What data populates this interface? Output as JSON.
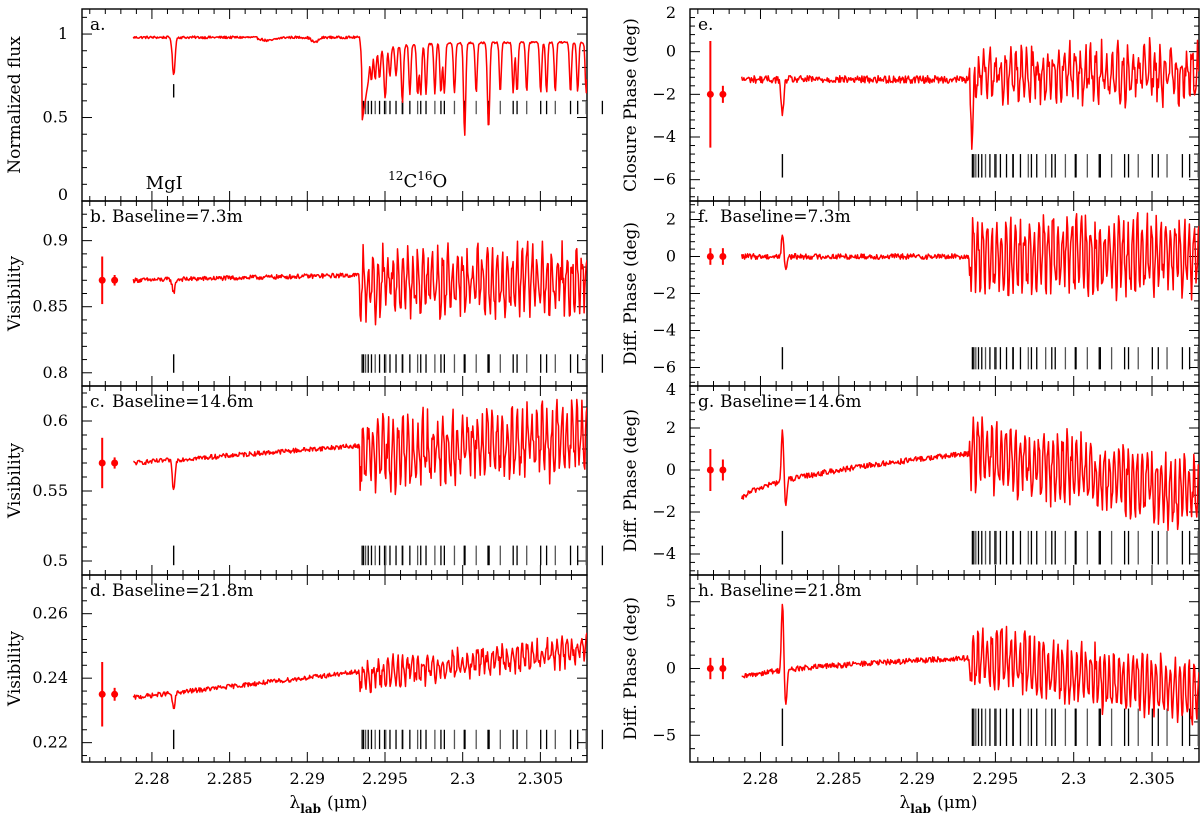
{
  "figure": {
    "x_axis_label": "λ",
    "x_axis_label_sub": "lab",
    "x_axis_label_unit": "(μm)",
    "x_ticks": [
      2.28,
      2.285,
      2.29,
      2.295,
      2.3,
      2.305
    ],
    "x_tick_labels": [
      "2.28",
      "2.285",
      "2.29",
      "2.295",
      "2.3",
      "2.305"
    ]
  },
  "chart_data": [
    {
      "id": "a",
      "type": "line",
      "panel_label": "a.",
      "ylabel": "Normalized flux",
      "xlim": [
        2.2755,
        2.308
      ],
      "ylim": [
        0,
        1.15
      ],
      "yticks": [
        0,
        0.5,
        1
      ],
      "ytick_labels": [
        "0",
        "0.5",
        "1"
      ],
      "series_color": "#ff0000",
      "error_points": [],
      "line_marker_levels": [
        0.7,
        0.62
      ],
      "co_marker_levels": [
        0.6,
        0.52
      ],
      "annotations": {
        "mg": "MgI",
        "co_sup1": "12",
        "co_c": "C",
        "co_sup2": "16",
        "co_o": "O"
      },
      "summary": {
        "x_start": 2.2788,
        "continuum": 0.98,
        "mg_line_depth": 0.75,
        "co_bandhead_min": 0.48,
        "co_continuum": 0.95,
        "co_line_depth_min": 0.55
      }
    },
    {
      "id": "b",
      "type": "line",
      "panel_label": "b.",
      "title": "Baseline=7.3m",
      "ylabel": "Visibility",
      "xlim": [
        2.2755,
        2.308
      ],
      "ylim": [
        0.79,
        0.93
      ],
      "yticks": [
        0.8,
        0.85,
        0.9
      ],
      "ytick_labels": [
        "0.8",
        "0.85",
        "0.9"
      ],
      "series_color": "#ff0000",
      "error_points": [
        {
          "x": 2.2768,
          "y": 0.87,
          "err": 0.018
        },
        {
          "x": 2.2776,
          "y": 0.87,
          "err": 0.004
        }
      ],
      "line_marker_levels": [
        0.814,
        0.8
      ],
      "co_marker_levels": [
        0.814,
        0.8
      ],
      "summary": {
        "x_start": 2.2788,
        "level_start": 0.87,
        "level_end": 0.878,
        "mg_feature": 0.86,
        "co_amplitude": 0.035
      }
    },
    {
      "id": "c",
      "type": "line",
      "panel_label": "c.",
      "title": "Baseline=14.6m",
      "ylabel": "Visibility",
      "xlim": [
        2.2755,
        2.308
      ],
      "ylim": [
        0.49,
        0.625
      ],
      "yticks": [
        0.5,
        0.55,
        0.6
      ],
      "ytick_labels": [
        "0.5",
        "0.55",
        "0.6"
      ],
      "series_color": "#ff0000",
      "error_points": [
        {
          "x": 2.2768,
          "y": 0.57,
          "err": 0.018
        },
        {
          "x": 2.2776,
          "y": 0.57,
          "err": 0.004
        }
      ],
      "line_marker_levels": [
        0.511,
        0.497
      ],
      "co_marker_levels": [
        0.511,
        0.497
      ],
      "summary": {
        "x_start": 2.2788,
        "level_start": 0.57,
        "level_end": 0.595,
        "mg_feature": 0.548,
        "co_amplitude": 0.035
      }
    },
    {
      "id": "d",
      "type": "line",
      "panel_label": "d.",
      "title": "Baseline=21.8m",
      "ylabel": "Visibility",
      "xlim": [
        2.2755,
        2.308
      ],
      "ylim": [
        0.214,
        0.272
      ],
      "yticks": [
        0.22,
        0.24,
        0.26
      ],
      "ytick_labels": [
        "0.22",
        "0.24",
        "0.26"
      ],
      "series_color": "#ff0000",
      "error_points": [
        {
          "x": 2.2768,
          "y": 0.235,
          "err": 0.01
        },
        {
          "x": 2.2776,
          "y": 0.235,
          "err": 0.002
        }
      ],
      "line_marker_levels": [
        0.224,
        0.218
      ],
      "co_marker_levels": [
        0.224,
        0.218
      ],
      "summary": {
        "x_start": 2.2788,
        "level_start": 0.234,
        "level_end": 0.25,
        "mg_feature": 0.229,
        "co_amplitude": 0.006
      }
    },
    {
      "id": "e",
      "type": "line",
      "panel_label": "e.",
      "ylabel": "Closure Phase (deg)",
      "xlim": [
        2.2755,
        2.308
      ],
      "ylim": [
        -7,
        2
      ],
      "yticks": [
        2,
        0,
        -2,
        -4,
        -6
      ],
      "ytick_labels": [
        "2",
        "0",
        "−2",
        "−4",
        "−6"
      ],
      "series_color": "#ff0000",
      "error_points": [
        {
          "x": 2.2768,
          "y": -2.0,
          "err": 2.5
        },
        {
          "x": 2.2776,
          "y": -2.0,
          "err": 0.4
        }
      ],
      "line_marker_levels": [
        -4.8,
        -5.9
      ],
      "co_marker_levels": [
        -4.8,
        -5.9
      ],
      "summary": {
        "x_start": 2.2788,
        "level": -1.3,
        "mg_feature": -3.0,
        "co_bandhead_min": -4.3,
        "co_amplitude": 1.6
      }
    },
    {
      "id": "f",
      "type": "line",
      "panel_label": "f.",
      "title": "Baseline=7.3m",
      "ylabel": "Diff. Phase (deg)",
      "xlim": [
        2.2755,
        2.308
      ],
      "ylim": [
        -7,
        3
      ],
      "yticks": [
        2,
        0,
        -2,
        -4,
        -6
      ],
      "ytick_labels": [
        "2",
        "0",
        "−2",
        "−4",
        "−6"
      ],
      "series_color": "#ff0000",
      "error_points": [
        {
          "x": 2.2768,
          "y": 0.0,
          "err": 0.45
        },
        {
          "x": 2.2776,
          "y": 0.0,
          "err": 0.45
        }
      ],
      "line_marker_levels": [
        -4.9,
        -6.1
      ],
      "co_marker_levels": [
        -4.9,
        -6.1
      ],
      "summary": {
        "x_start": 2.2788,
        "level": 0.0,
        "mg_feature": 1.2,
        "co_amplitude": 2.2
      }
    },
    {
      "id": "g",
      "type": "line",
      "panel_label": "g.",
      "title": "Baseline=14.6m",
      "ylabel": "Diff. Phase (deg)",
      "xlim": [
        2.2755,
        2.308
      ],
      "ylim": [
        -5,
        4
      ],
      "yticks": [
        4,
        2,
        0,
        -2,
        -4
      ],
      "ytick_labels": [
        "4",
        "2",
        "0",
        "−2",
        "−4"
      ],
      "series_color": "#ff0000",
      "error_points": [
        {
          "x": 2.2768,
          "y": 0.0,
          "err": 1.0
        },
        {
          "x": 2.2776,
          "y": 0.0,
          "err": 0.5
        }
      ],
      "line_marker_levels": [
        -2.9,
        -4.5
      ],
      "co_marker_levels": [
        -2.9,
        -4.5
      ],
      "summary": {
        "x_start": 2.2788,
        "level_start": -1.5,
        "level_mid": 0.8,
        "level_end": -1.2,
        "mg_feature": 2.0,
        "co_amplitude": 1.8
      }
    },
    {
      "id": "h",
      "type": "line",
      "panel_label": "h.",
      "title": "Baseline=21.8m",
      "ylabel": "Diff. Phase (deg)",
      "xlim": [
        2.2755,
        2.308
      ],
      "ylim": [
        -7,
        7
      ],
      "yticks": [
        5,
        0,
        -5
      ],
      "ytick_labels": [
        "5",
        "0",
        "−5"
      ],
      "series_color": "#ff0000",
      "error_points": [
        {
          "x": 2.2768,
          "y": 0.0,
          "err": 0.8
        },
        {
          "x": 2.2776,
          "y": 0.0,
          "err": 0.8
        }
      ],
      "line_marker_levels": [
        -3.0,
        -5.8
      ],
      "co_marker_levels": [
        -3.0,
        -5.8
      ],
      "summary": {
        "x_start": 2.2788,
        "level_start": -0.8,
        "level_mid": 0.8,
        "level_end": -1.8,
        "mg_feature": 5.0,
        "co_amplitude": 2.5
      }
    }
  ],
  "spectral_lines": {
    "mg_i": 2.2814,
    "co": [
      2.29353,
      2.29362,
      2.29375,
      2.29392,
      2.29413,
      2.29437,
      2.29465,
      2.29497,
      2.29532,
      2.29571,
      2.29614,
      2.2966,
      2.2971,
      2.29764,
      2.29821,
      2.29882,
      2.29947,
      2.30015,
      2.30087,
      2.30163,
      2.30242,
      2.30325,
      2.30412,
      2.30502,
      2.30596,
      2.30694,
      2.30795,
      2.30899,
      2.29505,
      2.2961,
      2.2973,
      2.2986,
      2.3001,
      2.3017,
      2.3035,
      2.3054,
      2.3074
    ]
  }
}
